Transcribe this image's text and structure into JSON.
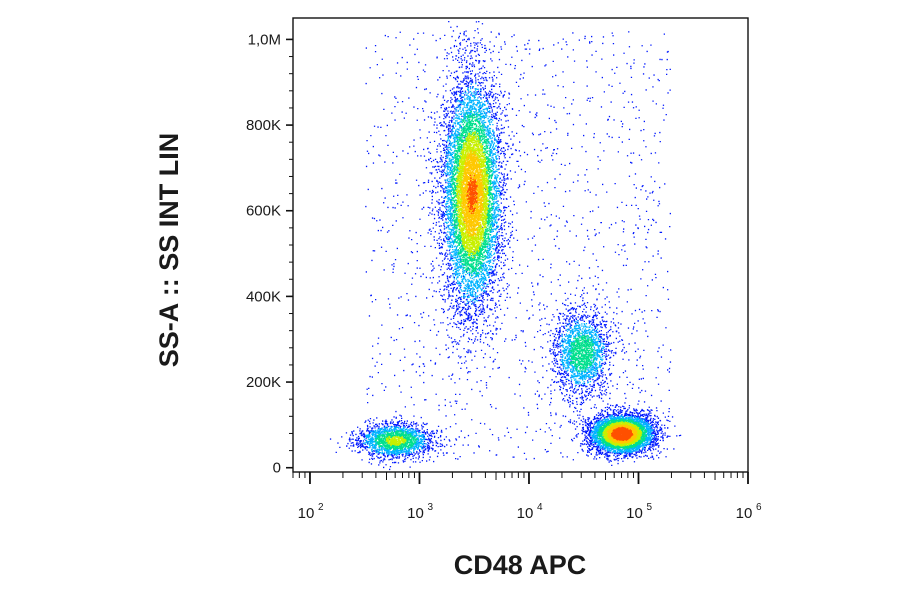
{
  "chart_data": {
    "type": "scatter",
    "subtype": "flow-cytometry density dot plot",
    "xlabel": "CD48 APC",
    "ylabel": "SS-A :: SS INT LIN",
    "x_scale": "log",
    "xlim": [
      70,
      1000000
    ],
    "ylim": [
      -10000,
      1050000
    ],
    "x_ticks": [
      {
        "value": 100,
        "base": "10",
        "exp": "2"
      },
      {
        "value": 1000,
        "base": "10",
        "exp": "3"
      },
      {
        "value": 10000,
        "base": "10",
        "exp": "4"
      },
      {
        "value": 100000,
        "base": "10",
        "exp": "5"
      },
      {
        "value": 1000000,
        "base": "10",
        "exp": "6"
      }
    ],
    "y_ticks": [
      {
        "value": 0,
        "label": "0"
      },
      {
        "value": 200000,
        "label": "200K"
      },
      {
        "value": 400000,
        "label": "400K"
      },
      {
        "value": 600000,
        "label": "600K"
      },
      {
        "value": 800000,
        "label": "800K"
      },
      {
        "value": 1000000,
        "label": "1,0M"
      }
    ],
    "populations": [
      {
        "center_x": 3000,
        "center_y": 640000,
        "spread_log_x": 0.13,
        "spread_y": 130000,
        "events": 9000,
        "peak_density": 0.85
      },
      {
        "center_x": 600,
        "center_y": 65000,
        "spread_log_x": 0.17,
        "spread_y": 20000,
        "events": 2000,
        "peak_density": 0.55
      },
      {
        "center_x": 70000,
        "center_y": 80000,
        "spread_log_x": 0.14,
        "spread_y": 22000,
        "events": 5500,
        "peak_density": 1.0
      },
      {
        "center_x": 30000,
        "center_y": 270000,
        "spread_log_x": 0.13,
        "spread_y": 50000,
        "events": 2000,
        "peak_density": 0.45
      }
    ],
    "colormap": [
      "#0018ff",
      "#00b4ff",
      "#00e08c",
      "#c8f000",
      "#ffc800",
      "#ff5000",
      "#ff0000"
    ],
    "grid": false,
    "legend": "none"
  }
}
